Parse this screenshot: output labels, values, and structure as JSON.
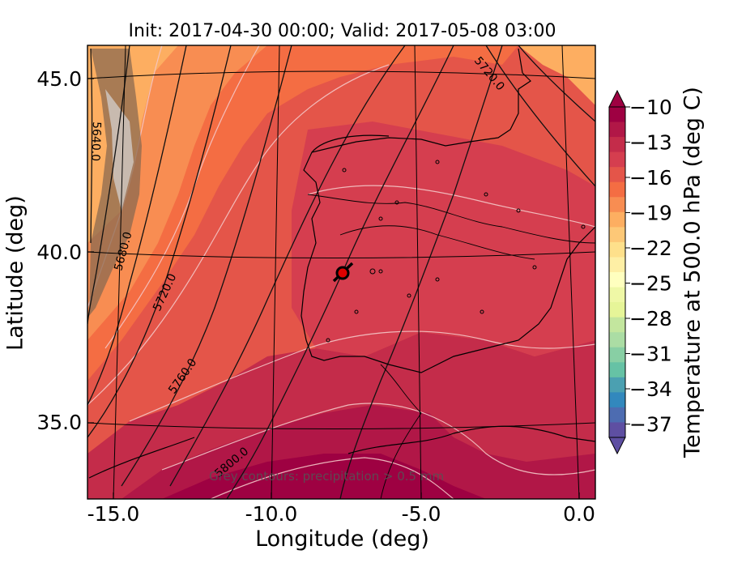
{
  "figure": {
    "title": "Init: 2017-04-30 00:00; Valid: 2017-05-08 03:00",
    "xlabel": "Longitude (deg)",
    "ylabel": "Latitude (deg)",
    "x_ticks": [
      "-15.0",
      "-10.0",
      "-5.0",
      "0.0"
    ],
    "y_ticks": [
      "45.0",
      "40.0",
      "35.0"
    ],
    "note": "Grey contours: precipitation > 0.5 mm",
    "marker": "red circle near 39.3N, -7.6E"
  },
  "colorbar": {
    "label": "Temperature at 500.0 hPa (deg C)",
    "ticks": [
      "−10",
      "−13",
      "−16",
      "−19",
      "−22",
      "−25",
      "−28",
      "−31",
      "−34",
      "−37"
    ],
    "colors": [
      "#9e0142",
      "#b11747",
      "#c42c4a",
      "#d53e4f",
      "#e45549",
      "#f46d43",
      "#f88d52",
      "#fdae61",
      "#fdc877",
      "#fee08b",
      "#feefa5",
      "#ffffbf",
      "#eff8a6",
      "#e6f598",
      "#c3e69e",
      "#abdda4",
      "#88cfa4",
      "#66c2a5",
      "#4ba0b1",
      "#3288bd",
      "#4d6cb1",
      "#5e4fa2"
    ]
  },
  "contours": {
    "heights": [
      "5640.0",
      "5680.0",
      "5720.0",
      "5760.0",
      "5800.0",
      "5720.0"
    ]
  },
  "chart_data": {
    "type": "heatmap",
    "title": "Init: 2017-04-30 00:00; Valid: 2017-05-08 03:00",
    "xlabel": "Longitude (deg)",
    "ylabel": "Latitude (deg)",
    "xlim": [
      -15.9,
      0.2
    ],
    "ylim": [
      32.8,
      46.4
    ],
    "colorbar_range": [
      -37,
      -10
    ],
    "colorbar_label": "Temperature at 500.0 hPa (deg C)",
    "geopotential_contours_m": [
      5640,
      5680,
      5720,
      5760,
      5800
    ],
    "marker": {
      "lon": -7.6,
      "lat": 39.3
    }
  }
}
